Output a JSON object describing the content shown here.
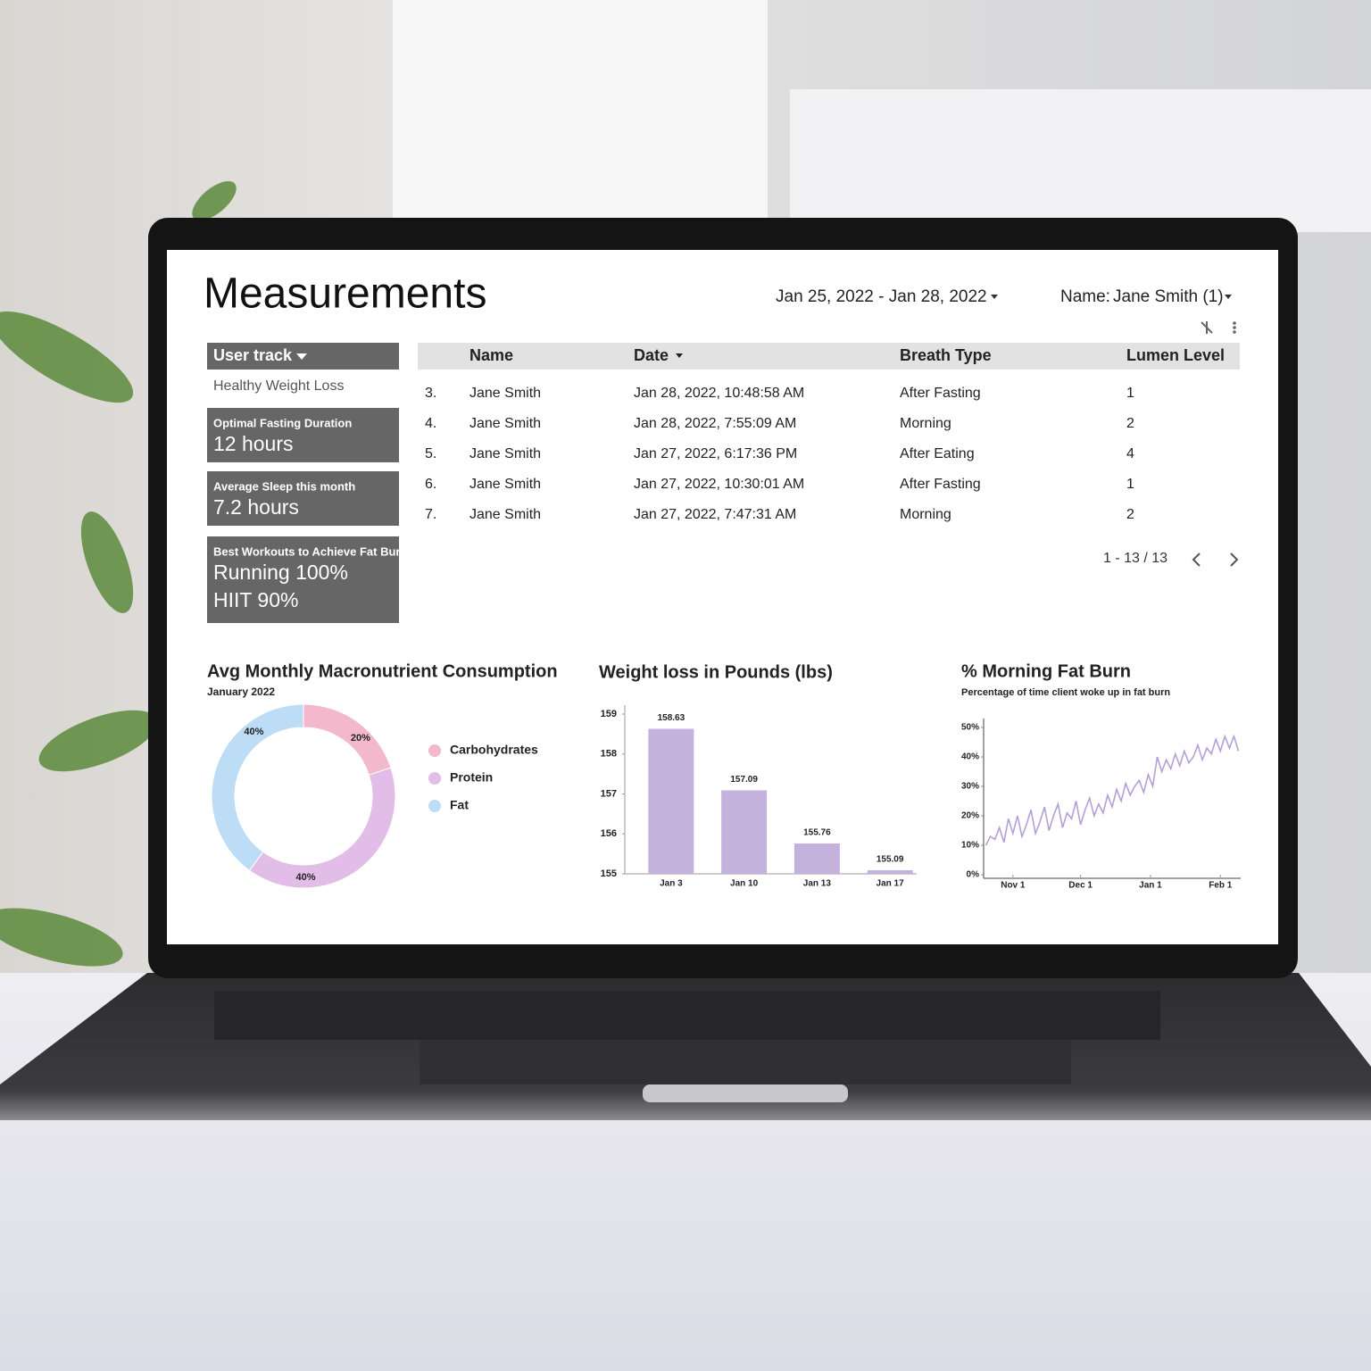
{
  "header": {
    "title": "Measurements",
    "date_range": "Jan 25, 2022 - Jan 28, 2022",
    "name_filter_label": "Name:",
    "name_filter_value": "Jane Smith (1)"
  },
  "sidebar": {
    "user_track_label": "User track",
    "user_track_value": "Healthy Weight Loss",
    "cards": [
      {
        "label": "Optimal Fasting Duration",
        "lines": [
          "12 hours"
        ]
      },
      {
        "label": "Average Sleep this month",
        "lines": [
          "7.2 hours"
        ]
      },
      {
        "label": "Best Workouts to Achieve Fat Burn",
        "lines": [
          "Running 100%",
          "HIIT 90%"
        ]
      }
    ]
  },
  "table": {
    "columns": [
      "Name",
      "Date",
      "Breath Type",
      "Lumen Level"
    ],
    "rows": [
      [
        "3.",
        "Jane Smith",
        "Jan 28, 2022, 10:48:58 AM",
        "After Fasting",
        1
      ],
      [
        "4.",
        "Jane Smith",
        "Jan 28, 2022, 7:55:09 AM",
        "Morning",
        2
      ],
      [
        "5.",
        "Jane Smith",
        "Jan 27, 2022, 6:17:36 PM",
        "After Eating",
        4
      ],
      [
        "6.",
        "Jane Smith",
        "Jan 27, 2022, 10:30:01 AM",
        "After Fasting",
        1
      ],
      [
        "7.",
        "Jane Smith",
        "Jan 27, 2022, 7:47:31 AM",
        "Morning",
        2
      ]
    ],
    "pagination": "1 - 13 / 13"
  },
  "chart_data": [
    {
      "type": "pie",
      "title": "Avg Monthly Macronutrient Consumption",
      "subtitle": "January 2022",
      "categories": [
        "Carbohydrates",
        "Protein",
        "Fat"
      ],
      "values": [
        20,
        40,
        40
      ],
      "value_labels": [
        "20%",
        "40%",
        "40%"
      ],
      "colors": [
        "#f4b8cd",
        "#e1bde7",
        "#bddcf5"
      ],
      "donut": true
    },
    {
      "type": "bar",
      "title": "Weight loss in Pounds (lbs)",
      "categories": [
        "Jan 3",
        "Jan 10",
        "Jan 13",
        "Jan 17"
      ],
      "values": [
        158.63,
        157.09,
        155.76,
        155.09
      ],
      "color": "#c4b2dd",
      "ylim": [
        155,
        159
      ],
      "yticks": [
        155,
        156,
        157,
        158,
        159
      ]
    },
    {
      "type": "line",
      "title": "% Morning Fat Burn",
      "subtitle": "Percentage of time client woke up in fat burn",
      "x": [
        -12,
        -10,
        -8,
        -6,
        -4,
        -2,
        0,
        2,
        4,
        6,
        8,
        10,
        12,
        14,
        16,
        18,
        20,
        22,
        24,
        26,
        28,
        30,
        32,
        34,
        36,
        38,
        40,
        42,
        44,
        46,
        48,
        50,
        52,
        54,
        56,
        58,
        60,
        62,
        64,
        66,
        68,
        70,
        72,
        74,
        76,
        78,
        80,
        82,
        84,
        86,
        88,
        90,
        92,
        94,
        96,
        98,
        100
      ],
      "values": [
        10,
        13,
        12,
        16,
        11,
        19,
        14,
        20,
        13,
        17,
        22,
        14,
        18,
        23,
        15,
        20,
        24,
        16,
        21,
        19,
        25,
        17,
        22,
        26,
        20,
        24,
        21,
        27,
        23,
        29,
        25,
        31,
        27,
        30,
        32,
        28,
        34,
        30,
        40,
        35,
        39,
        36,
        41,
        37,
        42,
        38,
        40,
        44,
        39,
        43,
        41,
        46,
        42,
        47,
        43,
        47,
        42
      ],
      "color": "#b49fd6",
      "xlim": [
        -13,
        101
      ],
      "xticks": [
        {
          "value": 0,
          "label": "Nov 1"
        },
        {
          "value": 30,
          "label": "Dec 1"
        },
        {
          "value": 61,
          "label": "Jan 1"
        },
        {
          "value": 92,
          "label": "Feb 1"
        }
      ],
      "ylim": [
        0,
        50
      ],
      "yticks": [
        {
          "value": 0,
          "label": "0%"
        },
        {
          "value": 10,
          "label": "10%"
        },
        {
          "value": 20,
          "label": "20%"
        },
        {
          "value": 30,
          "label": "30%"
        },
        {
          "value": 40,
          "label": "40%"
        },
        {
          "value": 50,
          "label": "50%"
        }
      ]
    }
  ]
}
